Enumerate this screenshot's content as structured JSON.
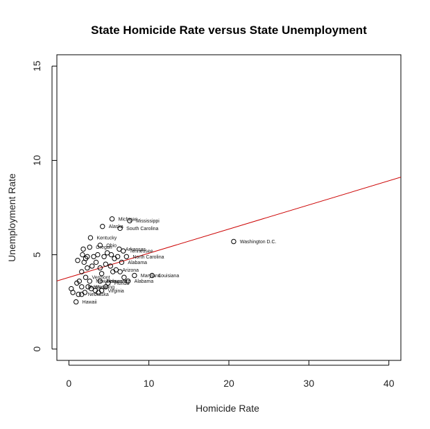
{
  "chart_data": {
    "type": "scatter",
    "title": "State Homicide Rate versus State Unemployment",
    "xlabel": "Homicide Rate",
    "ylabel": "Unemployment Rate",
    "xlim": [
      -1.5,
      41.5
    ],
    "ylim": [
      -0.6,
      15.6
    ],
    "xticks": [
      "0",
      "10",
      "20",
      "30",
      "40"
    ],
    "yticks": [
      "0",
      "5",
      "10",
      "15"
    ],
    "grid": false,
    "legend": "none",
    "colors": {
      "points": "#000000",
      "fit_line": "#cc0000",
      "frame": "#000000"
    },
    "fit_line": {
      "intercept": 3.8,
      "slope": 0.128
    },
    "points": [
      {
        "x": 20.6,
        "y": 5.7,
        "label": "Washington D.C."
      },
      {
        "x": 10.4,
        "y": 3.9,
        "label": "Louisiana"
      },
      {
        "x": 5.4,
        "y": 6.9,
        "label": "Michigan"
      },
      {
        "x": 7.6,
        "y": 6.8,
        "label": "Mississippi"
      },
      {
        "x": 4.2,
        "y": 6.5,
        "label": "Alaska"
      },
      {
        "x": 6.4,
        "y": 6.4,
        "label": "South Carolina"
      },
      {
        "x": 2.7,
        "y": 5.9,
        "label": "Kentucky"
      },
      {
        "x": 3.9,
        "y": 5.5,
        "label": "Ohio"
      },
      {
        "x": 2.6,
        "y": 5.4,
        "label": "Oregon"
      },
      {
        "x": 6.3,
        "y": 5.3,
        "label": "Arkansas"
      },
      {
        "x": 6.8,
        "y": 5.2,
        "label": "Tennessee"
      },
      {
        "x": 7.2,
        "y": 4.9,
        "label": "North Carolina"
      },
      {
        "x": 6.6,
        "y": 4.6,
        "label": "Alabama"
      },
      {
        "x": 5.9,
        "y": 4.2,
        "label": "Arizona"
      },
      {
        "x": 8.2,
        "y": 3.9,
        "label": "Maryland"
      },
      {
        "x": 7.4,
        "y": 3.6,
        "label": "Alabama"
      },
      {
        "x": 2.1,
        "y": 3.8,
        "label": "Vermont"
      },
      {
        "x": 2.6,
        "y": 3.6,
        "label": "New Hampshire"
      },
      {
        "x": 3.9,
        "y": 3.6,
        "label": "Delaware"
      },
      {
        "x": 4.9,
        "y": 3.5,
        "label": "Florida"
      },
      {
        "x": 1.6,
        "y": 3.3,
        "label": "Montana"
      },
      {
        "x": 2.4,
        "y": 3.3,
        "label": "Wyoming"
      },
      {
        "x": 4.1,
        "y": 3.1,
        "label": "Virginia"
      },
      {
        "x": 1.6,
        "y": 2.9,
        "label": "Nebraska"
      },
      {
        "x": 0.9,
        "y": 2.5,
        "label": "Hawaii"
      },
      {
        "x": 1.8,
        "y": 5.3,
        "label": ""
      },
      {
        "x": 1.7,
        "y": 5.0,
        "label": ""
      },
      {
        "x": 2.1,
        "y": 4.8,
        "label": ""
      },
      {
        "x": 1.1,
        "y": 4.7,
        "label": ""
      },
      {
        "x": 1.9,
        "y": 4.6,
        "label": ""
      },
      {
        "x": 3.1,
        "y": 4.9,
        "label": ""
      },
      {
        "x": 3.6,
        "y": 5.0,
        "label": ""
      },
      {
        "x": 4.4,
        "y": 4.9,
        "label": ""
      },
      {
        "x": 4.8,
        "y": 5.1,
        "label": ""
      },
      {
        "x": 5.3,
        "y": 5.0,
        "label": ""
      },
      {
        "x": 5.7,
        "y": 4.8,
        "label": ""
      },
      {
        "x": 6.1,
        "y": 4.9,
        "label": ""
      },
      {
        "x": 3.4,
        "y": 4.6,
        "label": ""
      },
      {
        "x": 2.9,
        "y": 4.4,
        "label": ""
      },
      {
        "x": 2.3,
        "y": 4.3,
        "label": ""
      },
      {
        "x": 3.9,
        "y": 4.3,
        "label": ""
      },
      {
        "x": 4.6,
        "y": 4.5,
        "label": ""
      },
      {
        "x": 5.2,
        "y": 4.4,
        "label": ""
      },
      {
        "x": 5.5,
        "y": 4.1,
        "label": ""
      },
      {
        "x": 6.4,
        "y": 4.1,
        "label": ""
      },
      {
        "x": 4.1,
        "y": 4.0,
        "label": ""
      },
      {
        "x": 1.6,
        "y": 4.1,
        "label": ""
      },
      {
        "x": 1.3,
        "y": 3.6,
        "label": ""
      },
      {
        "x": 1.0,
        "y": 3.5,
        "label": ""
      },
      {
        "x": 0.3,
        "y": 3.2,
        "label": ""
      },
      {
        "x": 0.5,
        "y": 3.0,
        "label": ""
      },
      {
        "x": 1.2,
        "y": 2.9,
        "label": ""
      },
      {
        "x": 2.0,
        "y": 3.0,
        "label": ""
      },
      {
        "x": 2.8,
        "y": 3.2,
        "label": ""
      },
      {
        "x": 3.3,
        "y": 3.1,
        "label": ""
      },
      {
        "x": 3.7,
        "y": 3.0,
        "label": ""
      },
      {
        "x": 4.6,
        "y": 3.3,
        "label": ""
      },
      {
        "x": 2.3,
        "y": 4.9,
        "label": ""
      },
      {
        "x": 6.9,
        "y": 3.8,
        "label": ""
      }
    ]
  }
}
